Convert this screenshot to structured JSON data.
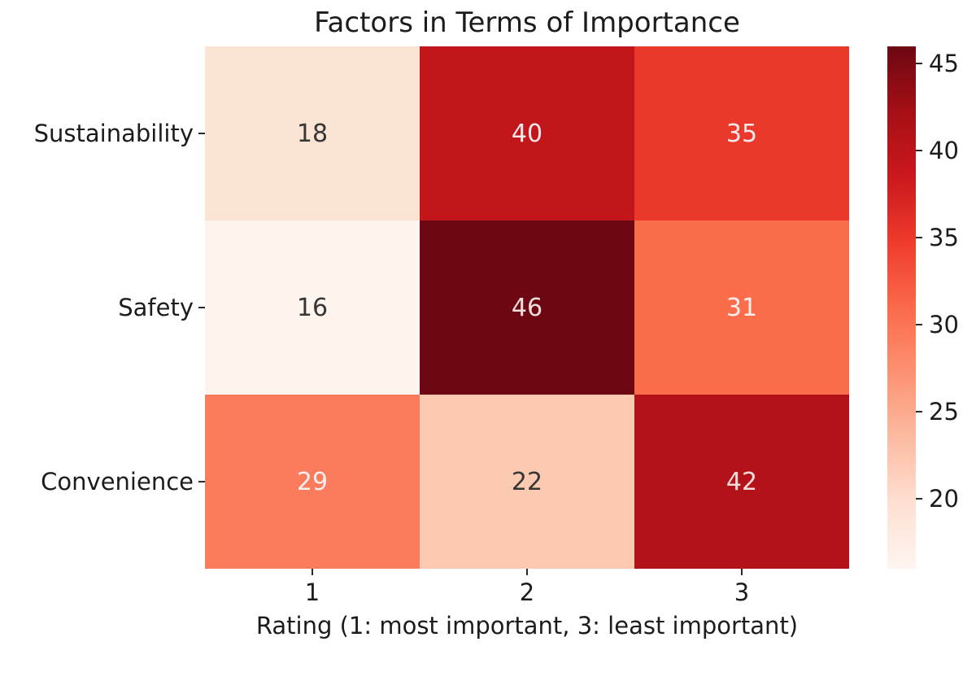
{
  "chart_data": {
    "type": "heatmap",
    "title": "Factors in Terms of Importance",
    "xlabel": "Rating (1: most important, 3: least important)",
    "ylabel": "",
    "rows": [
      "Sustainability",
      "Safety",
      "Convenience"
    ],
    "columns": [
      "1",
      "2",
      "3"
    ],
    "values": [
      [
        18,
        40,
        35
      ],
      [
        16,
        46,
        31
      ],
      [
        29,
        22,
        42
      ]
    ],
    "vmin": 16,
    "vmax": 46,
    "colormap": "Reds",
    "colorbar_ticks": [
      20,
      25,
      30,
      35,
      40,
      45
    ],
    "colorbar_gradient_bottom_to_top": [
      "#fff5f0",
      "#fee0d2",
      "#fcbba1",
      "#fc9272",
      "#fb6a4a",
      "#ef3b2c",
      "#cb181d",
      "#a50f15",
      "#6d0813"
    ],
    "cell_colors": [
      [
        "#fce4d5",
        "#c2161b",
        "#ea392b"
      ],
      [
        "#fef4ee",
        "#6d0813",
        "#f96d4b"
      ],
      [
        "#fb7c5c",
        "#fcc9b1",
        "#b31219"
      ]
    ],
    "cell_text_colors": [
      [
        "#363636",
        "#f2eaea",
        "#f2eaea"
      ],
      [
        "#363636",
        "#f2dddd",
        "#f7efed"
      ],
      [
        "#f7efed",
        "#363636",
        "#f2dddd"
      ]
    ],
    "axis_text_color": "#1c1c1c",
    "grid_on": false,
    "legend_position": "colorbar-right"
  }
}
